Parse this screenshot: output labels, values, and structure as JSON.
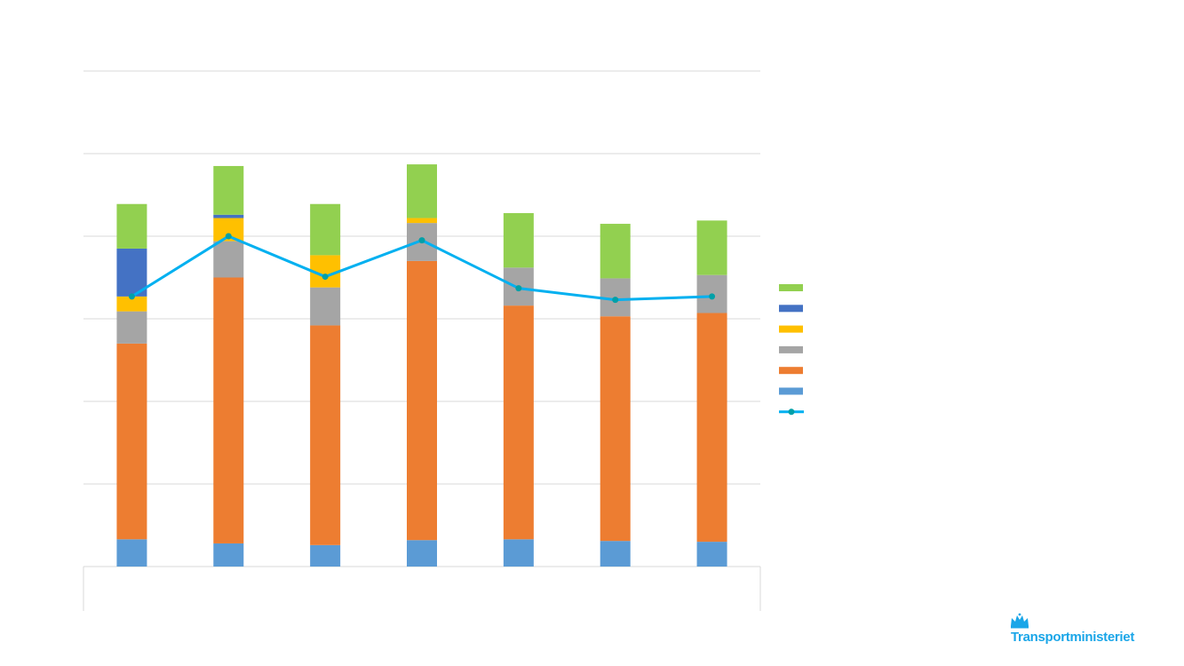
{
  "chart_data": {
    "type": "bar",
    "stacked": true,
    "ylim": [
      0,
      6
    ],
    "grid": true,
    "legend_position": "right",
    "categories": [
      "",
      "",
      "",
      "",
      "",
      "",
      ""
    ],
    "series": [
      {
        "key": "s1",
        "color": "#5B9BD5",
        "values": [
          0.33,
          0.28,
          0.26,
          0.32,
          0.33,
          0.31,
          0.3
        ]
      },
      {
        "key": "s2",
        "color": "#ED7D31",
        "values": [
          2.37,
          3.22,
          2.66,
          3.38,
          2.83,
          2.72,
          2.77
        ]
      },
      {
        "key": "s3",
        "color": "#A5A5A5",
        "values": [
          0.39,
          0.44,
          0.46,
          0.46,
          0.46,
          0.46,
          0.46
        ]
      },
      {
        "key": "s4",
        "color": "#FFC000",
        "values": [
          0.18,
          0.28,
          0.39,
          0.06,
          0,
          0,
          0
        ]
      },
      {
        "key": "s5",
        "color": "#4472C4",
        "values": [
          0.58,
          0.04,
          0,
          0,
          0,
          0,
          0
        ]
      },
      {
        "key": "s6",
        "color": "#92D050",
        "values": [
          0.54,
          0.59,
          0.62,
          0.65,
          0.66,
          0.66,
          0.66
        ]
      }
    ],
    "line": {
      "key": "line1",
      "color": "#00B0F0",
      "marker_color": "#00A0A8",
      "values": [
        3.27,
        4.0,
        3.51,
        3.95,
        3.37,
        3.23,
        3.27
      ]
    }
  },
  "logo": {
    "text": "Transportministeriet",
    "color": "#1AA6E8"
  }
}
